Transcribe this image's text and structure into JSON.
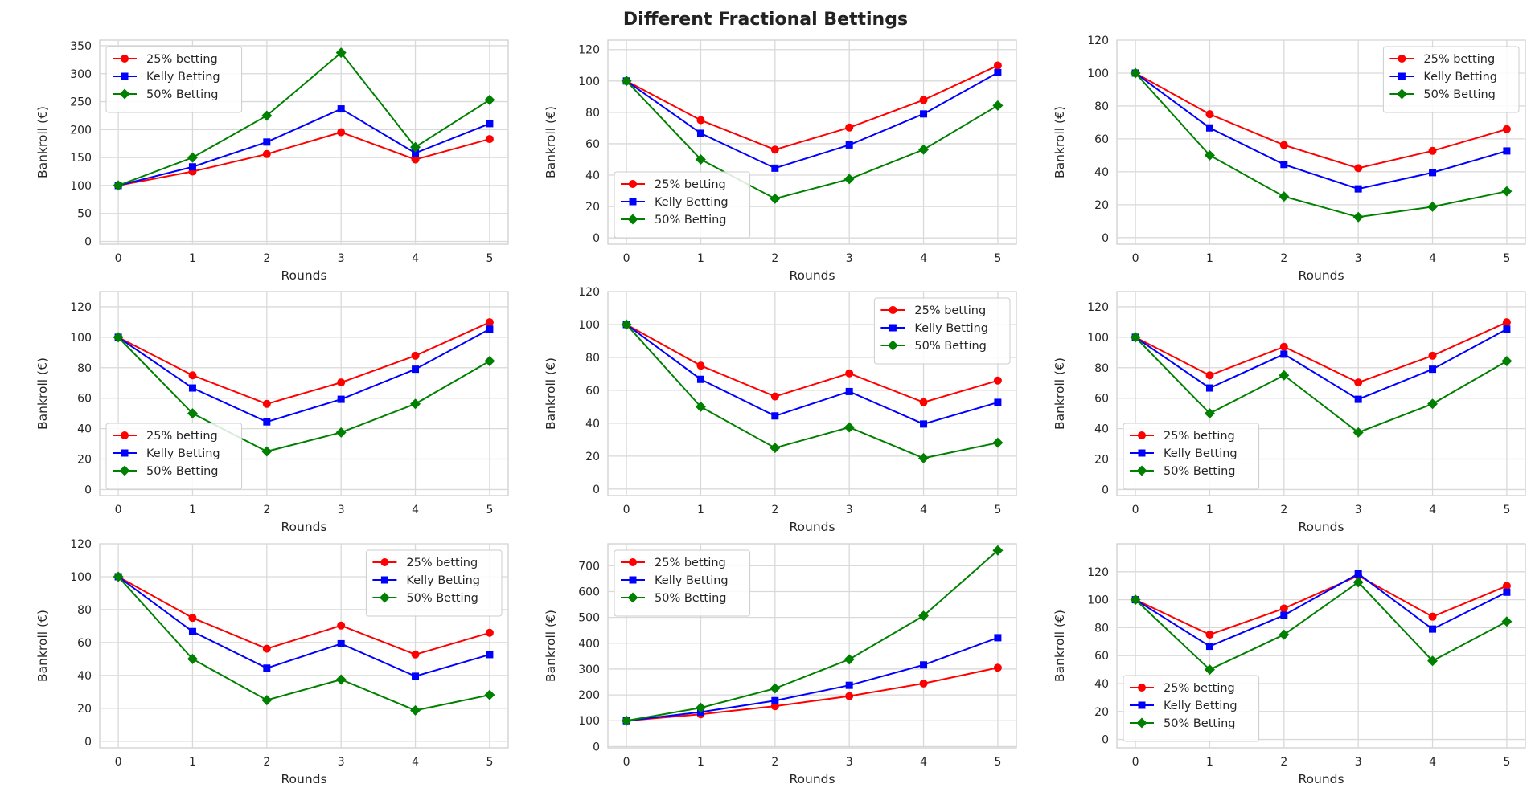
{
  "figure": {
    "title": "Different Fractional Bettings"
  },
  "series_styles": [
    {
      "color": "#ff0000",
      "marker": "circle"
    },
    {
      "color": "#0000ff",
      "marker": "square"
    },
    {
      "color": "#008000",
      "marker": "diamond"
    }
  ],
  "chart_data": [
    {
      "type": "line",
      "xlabel": "Rounds",
      "ylabel": "Bankroll (€)",
      "x": [
        0,
        1,
        2,
        3,
        4,
        5
      ],
      "ylim": [
        -5,
        360
      ],
      "yticks": [
        0,
        50,
        100,
        150,
        200,
        250,
        300,
        350
      ],
      "legend_position": "upper-left",
      "grid": true,
      "series": [
        {
          "name": "25% betting",
          "values": [
            100,
            125,
            156.25,
            195.31,
            146.48,
            183.11
          ]
        },
        {
          "name": "Kelly Betting",
          "values": [
            100,
            133.33,
            177.78,
            237.04,
            158.02,
            210.7
          ]
        },
        {
          "name": "50% Betting",
          "values": [
            100,
            150,
            225,
            337.5,
            168.75,
            253.13
          ]
        }
      ]
    },
    {
      "type": "line",
      "xlabel": "Rounds",
      "ylabel": "Bankroll (€)",
      "x": [
        0,
        1,
        2,
        3,
        4,
        5
      ],
      "ylim": [
        -4,
        126
      ],
      "yticks": [
        0,
        20,
        40,
        60,
        80,
        100,
        120
      ],
      "legend_position": "lower-left",
      "grid": true,
      "series": [
        {
          "name": "25% betting",
          "values": [
            100,
            75,
            56.25,
            70.31,
            87.89,
            109.86
          ]
        },
        {
          "name": "Kelly Betting",
          "values": [
            100,
            66.67,
            44.44,
            59.26,
            79.01,
            105.35
          ]
        },
        {
          "name": "50% Betting",
          "values": [
            100,
            50,
            25,
            37.5,
            56.25,
            84.38
          ]
        }
      ]
    },
    {
      "type": "line",
      "xlabel": "Rounds",
      "ylabel": "Bankroll (€)",
      "x": [
        0,
        1,
        2,
        3,
        4,
        5
      ],
      "ylim": [
        -4,
        120
      ],
      "yticks": [
        0,
        20,
        40,
        60,
        80,
        100,
        120
      ],
      "legend_position": "upper-right",
      "grid": true,
      "series": [
        {
          "name": "25% betting",
          "values": [
            100,
            75,
            56.25,
            42.19,
            52.73,
            65.92
          ]
        },
        {
          "name": "Kelly Betting",
          "values": [
            100,
            66.67,
            44.44,
            29.63,
            39.51,
            52.67
          ]
        },
        {
          "name": "50% Betting",
          "values": [
            100,
            50,
            25,
            12.5,
            18.75,
            28.13
          ]
        }
      ]
    },
    {
      "type": "line",
      "xlabel": "Rounds",
      "ylabel": "Bankroll (€)",
      "x": [
        0,
        1,
        2,
        3,
        4,
        5
      ],
      "ylim": [
        -4,
        130
      ],
      "yticks": [
        0,
        20,
        40,
        60,
        80,
        100,
        120
      ],
      "legend_position": "lower-left",
      "grid": true,
      "series": [
        {
          "name": "25% betting",
          "values": [
            100,
            75,
            56.25,
            70.31,
            87.89,
            109.86
          ]
        },
        {
          "name": "Kelly Betting",
          "values": [
            100,
            66.67,
            44.44,
            59.26,
            79.01,
            105.35
          ]
        },
        {
          "name": "50% Betting",
          "values": [
            100,
            50,
            25,
            37.5,
            56.25,
            84.38
          ]
        }
      ]
    },
    {
      "type": "line",
      "xlabel": "Rounds",
      "ylabel": "Bankroll (€)",
      "x": [
        0,
        1,
        2,
        3,
        4,
        5
      ],
      "ylim": [
        -4,
        120
      ],
      "yticks": [
        0,
        20,
        40,
        60,
        80,
        100,
        120
      ],
      "legend_position": "upper-right",
      "grid": true,
      "series": [
        {
          "name": "25% betting",
          "values": [
            100,
            75,
            56.25,
            70.31,
            52.73,
            65.92
          ]
        },
        {
          "name": "Kelly Betting",
          "values": [
            100,
            66.67,
            44.44,
            59.26,
            39.51,
            52.67
          ]
        },
        {
          "name": "50% Betting",
          "values": [
            100,
            50,
            25,
            37.5,
            18.75,
            28.13
          ]
        }
      ]
    },
    {
      "type": "line",
      "xlabel": "Rounds",
      "ylabel": "Bankroll (€)",
      "x": [
        0,
        1,
        2,
        3,
        4,
        5
      ],
      "ylim": [
        -4,
        130
      ],
      "yticks": [
        0,
        20,
        40,
        60,
        80,
        100,
        120
      ],
      "legend_position": "lower-left",
      "grid": true,
      "series": [
        {
          "name": "25% betting",
          "values": [
            100,
            75,
            93.75,
            70.31,
            87.89,
            109.86
          ]
        },
        {
          "name": "Kelly Betting",
          "values": [
            100,
            66.67,
            88.89,
            59.26,
            79.01,
            105.35
          ]
        },
        {
          "name": "50% Betting",
          "values": [
            100,
            50,
            75,
            37.5,
            56.25,
            84.38
          ]
        }
      ]
    },
    {
      "type": "line",
      "xlabel": "Rounds",
      "ylabel": "Bankroll (€)",
      "x": [
        0,
        1,
        2,
        3,
        4,
        5
      ],
      "ylim": [
        -4,
        120
      ],
      "yticks": [
        0,
        20,
        40,
        60,
        80,
        100,
        120
      ],
      "legend_position": "upper-right",
      "grid": true,
      "series": [
        {
          "name": "25% betting",
          "values": [
            100,
            75,
            56.25,
            70.31,
            52.73,
            65.92
          ]
        },
        {
          "name": "Kelly Betting",
          "values": [
            100,
            66.67,
            44.44,
            59.26,
            39.51,
            52.67
          ]
        },
        {
          "name": "50% Betting",
          "values": [
            100,
            50,
            25,
            37.5,
            18.75,
            28.13
          ]
        }
      ]
    },
    {
      "type": "line",
      "xlabel": "Rounds",
      "ylabel": "Bankroll (€)",
      "x": [
        0,
        1,
        2,
        3,
        4,
        5
      ],
      "ylim": [
        -5,
        785
      ],
      "yticks": [
        0,
        100,
        200,
        300,
        400,
        500,
        600,
        700
      ],
      "legend_position": "upper-left",
      "grid": true,
      "series": [
        {
          "name": "25% betting",
          "values": [
            100,
            125,
            156.25,
            195.31,
            244.14,
            305.18
          ]
        },
        {
          "name": "Kelly Betting",
          "values": [
            100,
            133.33,
            177.78,
            237.04,
            316.05,
            421.4
          ]
        },
        {
          "name": "50% Betting",
          "values": [
            100,
            150,
            225,
            337.5,
            506.25,
            759.38
          ]
        }
      ]
    },
    {
      "type": "line",
      "xlabel": "Rounds",
      "ylabel": "Bankroll (€)",
      "x": [
        0,
        1,
        2,
        3,
        4,
        5
      ],
      "ylim": [
        -6,
        140
      ],
      "yticks": [
        0,
        20,
        40,
        60,
        80,
        100,
        120
      ],
      "legend_position": "lower-left",
      "grid": true,
      "series": [
        {
          "name": "25% betting",
          "values": [
            100,
            75,
            93.75,
            117.19,
            87.89,
            109.86
          ]
        },
        {
          "name": "Kelly Betting",
          "values": [
            100,
            66.67,
            88.89,
            118.52,
            79.01,
            105.35
          ]
        },
        {
          "name": "50% Betting",
          "values": [
            100,
            50,
            75,
            112.5,
            56.25,
            84.38
          ]
        }
      ]
    }
  ]
}
